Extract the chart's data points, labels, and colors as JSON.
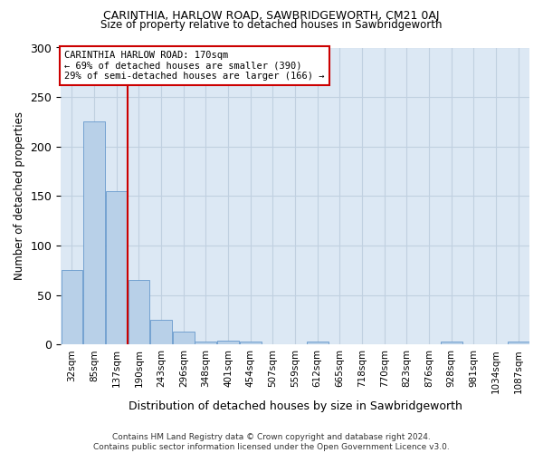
{
  "title": "CARINTHIA, HARLOW ROAD, SAWBRIDGEWORTH, CM21 0AJ",
  "subtitle": "Size of property relative to detached houses in Sawbridgeworth",
  "xlabel": "Distribution of detached houses by size in Sawbridgeworth",
  "ylabel": "Number of detached properties",
  "bar_labels": [
    "32sqm",
    "85sqm",
    "137sqm",
    "190sqm",
    "243sqm",
    "296sqm",
    "348sqm",
    "401sqm",
    "454sqm",
    "507sqm",
    "559sqm",
    "612sqm",
    "665sqm",
    "718sqm",
    "770sqm",
    "823sqm",
    "876sqm",
    "928sqm",
    "981sqm",
    "1034sqm",
    "1087sqm"
  ],
  "bar_values": [
    75,
    225,
    155,
    65,
    25,
    13,
    3,
    4,
    3,
    0,
    0,
    3,
    0,
    0,
    0,
    0,
    0,
    3,
    0,
    0,
    3
  ],
  "bar_color": "#b8d0e8",
  "bar_edge_color": "#6699cc",
  "vline_color": "#cc0000",
  "vline_label": "CARINTHIA HARLOW ROAD: 170sqm",
  "annotation_line1": "← 69% of detached houses are smaller (390)",
  "annotation_line2": "29% of semi-detached houses are larger (166) →",
  "annotation_box_color": "#ffffff",
  "annotation_box_edge": "#cc0000",
  "grid_color": "#c0d0e0",
  "bg_color": "#dce8f4",
  "ylim": [
    0,
    300
  ],
  "yticks": [
    0,
    50,
    100,
    150,
    200,
    250,
    300
  ],
  "footer1": "Contains HM Land Registry data © Crown copyright and database right 2024.",
  "footer2": "Contains public sector information licensed under the Open Government Licence v3.0."
}
